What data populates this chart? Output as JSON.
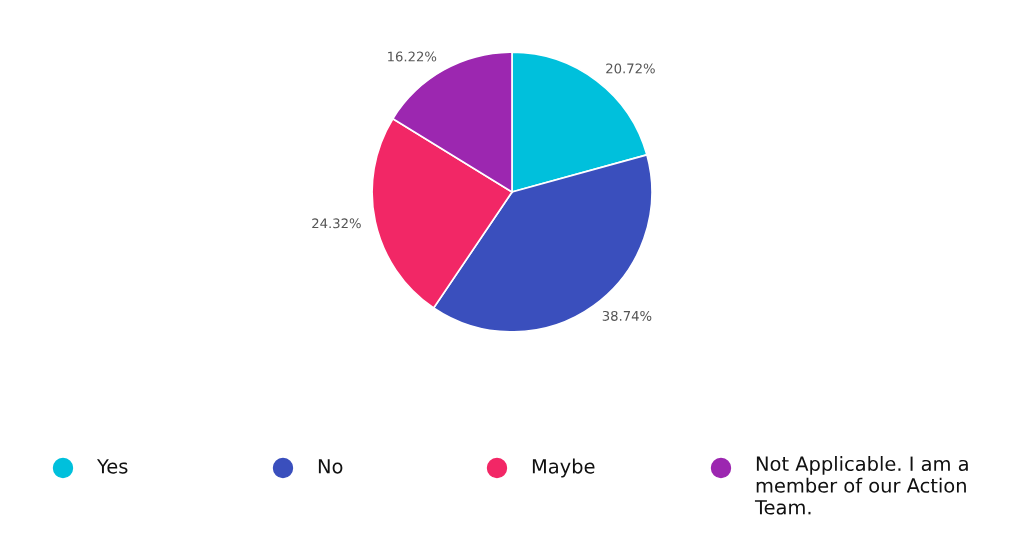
{
  "chart_data": {
    "type": "pie",
    "categories": [
      "Yes",
      "No",
      "Maybe",
      "Not Applicable. I am a member of our Action Team."
    ],
    "values": [
      20.72,
      38.74,
      24.32,
      16.22
    ],
    "value_labels": [
      "20.72%",
      "38.74%",
      "24.32%",
      "16.22%"
    ],
    "colors": [
      "#00c0dc",
      "#3a4fbd",
      "#f22766",
      "#9c27b0"
    ],
    "legend": "bottom"
  }
}
